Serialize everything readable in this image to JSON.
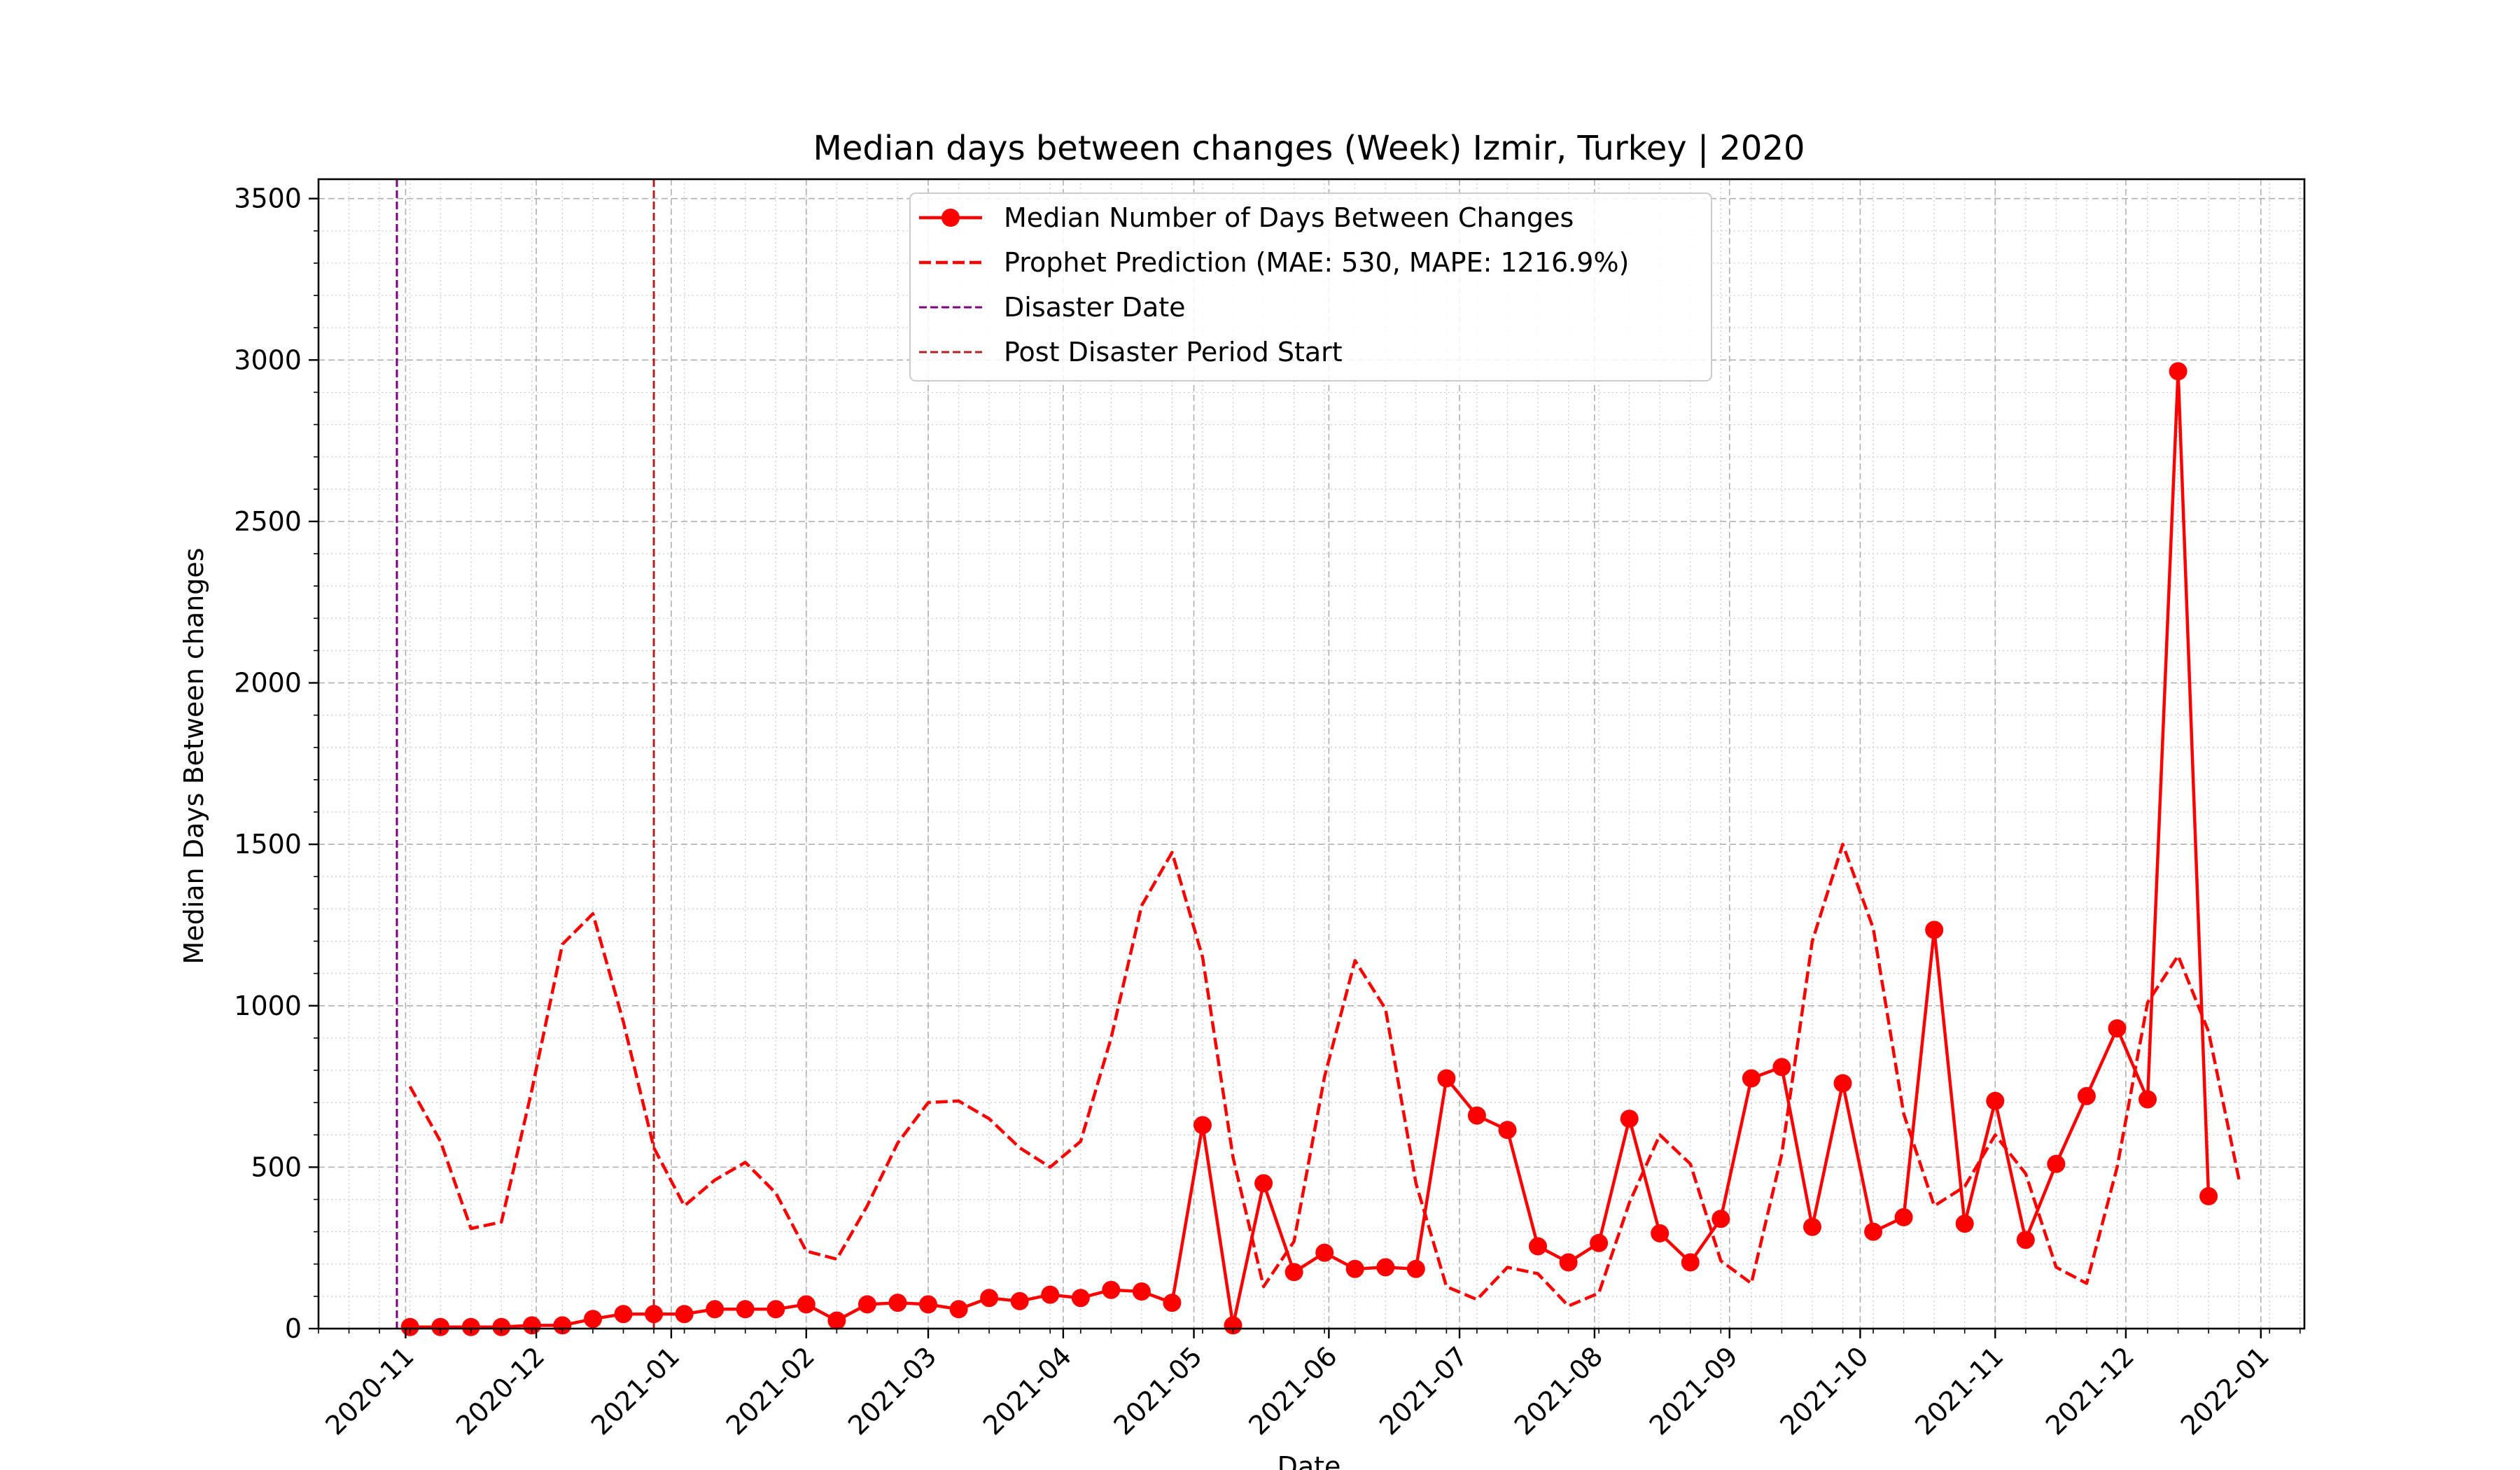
{
  "chart_data": {
    "type": "line",
    "title": "Median days between changes (Week) Izmir, Turkey | 2020",
    "xlabel": "Date",
    "ylabel": "Median Days Between changes",
    "xlim": [
      "2020-10-12",
      "2022-01-11"
    ],
    "ylim": [
      0,
      3560
    ],
    "x_tick_labels": [
      "2020-11",
      "2020-12",
      "2021-01",
      "2021-02",
      "2021-03",
      "2021-04",
      "2021-05",
      "2021-06",
      "2021-07",
      "2021-08",
      "2021-09",
      "2021-10",
      "2021-11",
      "2021-12",
      "2022-01"
    ],
    "x_tick_dates": [
      "2020-11-01",
      "2020-12-01",
      "2021-01-01",
      "2021-02-01",
      "2021-03-01",
      "2021-04-01",
      "2021-05-01",
      "2021-06-01",
      "2021-07-01",
      "2021-08-01",
      "2021-09-01",
      "2021-10-01",
      "2021-11-01",
      "2021-12-01",
      "2022-01-01"
    ],
    "y_ticks": [
      0,
      500,
      1000,
      1500,
      2000,
      2500,
      3000,
      3500
    ],
    "grid": true,
    "legend_position": "top-center",
    "series": [
      {
        "name": "Median Number of Days Between Changes",
        "style": "solid-marker",
        "color": "#ff0000",
        "x": [
          "2020-11-02",
          "2020-11-09",
          "2020-11-16",
          "2020-11-23",
          "2020-11-30",
          "2020-12-07",
          "2020-12-14",
          "2020-12-21",
          "2020-12-28",
          "2021-01-04",
          "2021-01-11",
          "2021-01-18",
          "2021-01-25",
          "2021-02-01",
          "2021-02-08",
          "2021-02-15",
          "2021-02-22",
          "2021-03-01",
          "2021-03-08",
          "2021-03-15",
          "2021-03-22",
          "2021-03-29",
          "2021-04-05",
          "2021-04-12",
          "2021-04-19",
          "2021-04-26",
          "2021-05-03",
          "2021-05-10",
          "2021-05-17",
          "2021-05-24",
          "2021-05-31",
          "2021-06-07",
          "2021-06-14",
          "2021-06-21",
          "2021-06-28",
          "2021-07-05",
          "2021-07-12",
          "2021-07-19",
          "2021-07-26",
          "2021-08-02",
          "2021-08-09",
          "2021-08-16",
          "2021-08-23",
          "2021-08-30",
          "2021-09-06",
          "2021-09-13",
          "2021-09-20",
          "2021-09-27",
          "2021-10-04",
          "2021-10-11",
          "2021-10-18",
          "2021-10-25",
          "2021-11-01",
          "2021-11-08",
          "2021-11-15",
          "2021-11-22",
          "2021-11-29",
          "2021-12-06",
          "2021-12-13",
          "2021-12-20"
        ],
        "values": [
          5,
          5,
          5,
          5,
          10,
          10,
          30,
          45,
          45,
          45,
          60,
          60,
          60,
          75,
          25,
          75,
          80,
          75,
          60,
          95,
          85,
          105,
          95,
          120,
          115,
          80,
          630,
          10,
          450,
          175,
          235,
          185,
          190,
          185,
          775,
          660,
          615,
          255,
          205,
          265,
          650,
          295,
          205,
          340,
          775,
          810,
          315,
          760,
          300,
          345,
          1235,
          325,
          705,
          275,
          510,
          720,
          930,
          710,
          2965,
          410
        ]
      },
      {
        "name": "Prophet Prediction (MAE: 530, MAPE: 1216.9%)",
        "style": "dashed",
        "color": "#ff0000",
        "x": [
          "2020-11-02",
          "2020-11-09",
          "2020-11-16",
          "2020-11-23",
          "2020-11-30",
          "2020-12-07",
          "2020-12-14",
          "2020-12-21",
          "2020-12-28",
          "2021-01-04",
          "2021-01-11",
          "2021-01-18",
          "2021-01-25",
          "2021-02-01",
          "2021-02-08",
          "2021-02-15",
          "2021-02-22",
          "2021-03-01",
          "2021-03-08",
          "2021-03-15",
          "2021-03-22",
          "2021-03-29",
          "2021-04-05",
          "2021-04-12",
          "2021-04-19",
          "2021-04-26",
          "2021-05-03",
          "2021-05-10",
          "2021-05-17",
          "2021-05-24",
          "2021-05-31",
          "2021-06-07",
          "2021-06-14",
          "2021-06-21",
          "2021-06-28",
          "2021-07-05",
          "2021-07-12",
          "2021-07-19",
          "2021-07-26",
          "2021-08-02",
          "2021-08-09",
          "2021-08-16",
          "2021-08-23",
          "2021-08-30",
          "2021-09-06",
          "2021-09-13",
          "2021-09-20",
          "2021-09-27",
          "2021-10-04",
          "2021-10-11",
          "2021-10-18",
          "2021-10-25",
          "2021-11-01",
          "2021-11-08",
          "2021-11-15",
          "2021-11-22",
          "2021-11-29",
          "2021-12-06",
          "2021-12-13",
          "2021-12-20",
          "2021-12-27"
        ],
        "values": [
          750,
          580,
          310,
          330,
          740,
          1190,
          1285,
          950,
          560,
          380,
          460,
          515,
          420,
          240,
          215,
          380,
          575,
          700,
          705,
          650,
          560,
          500,
          580,
          900,
          1310,
          1475,
          1150,
          530,
          130,
          270,
          780,
          1140,
          990,
          450,
          130,
          90,
          190,
          170,
          70,
          110,
          390,
          600,
          510,
          210,
          140,
          540,
          1200,
          1500,
          1240,
          665,
          380,
          440,
          600,
          480,
          190,
          140,
          500,
          1010,
          1155,
          920,
          460
        ]
      }
    ],
    "vertical_lines": [
      {
        "name": "Disaster Date",
        "x": "2020-10-30",
        "color": "#800080",
        "style": "dashed"
      },
      {
        "name": "Post Disaster Period Start",
        "x": "2020-12-28",
        "color": "#b22222",
        "style": "dashed"
      }
    ]
  }
}
